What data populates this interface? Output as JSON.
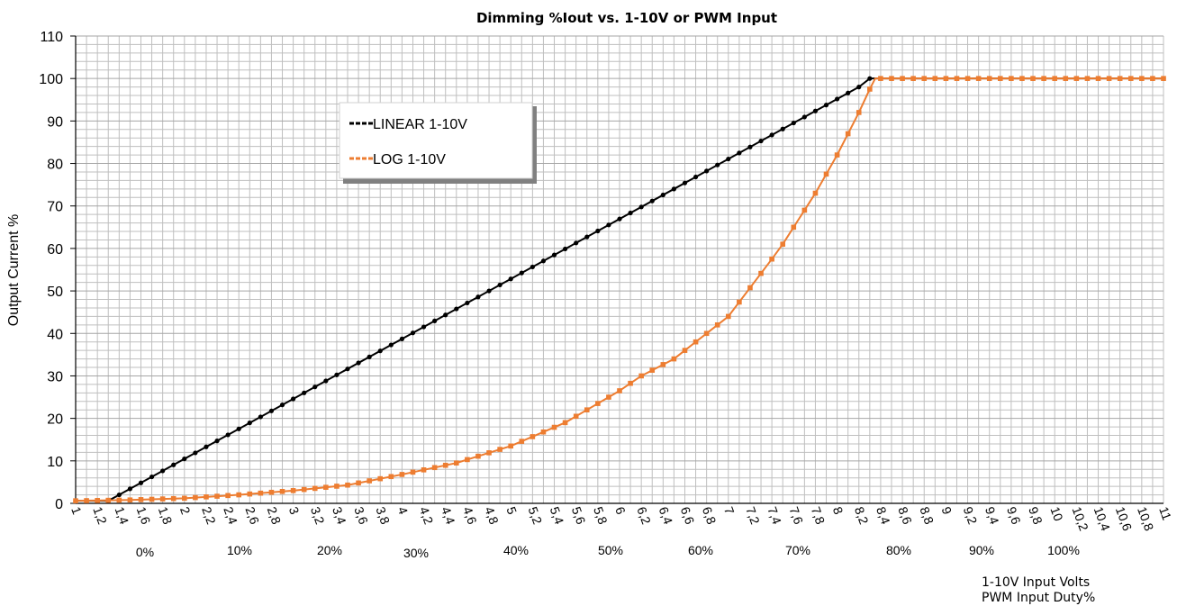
{
  "chart_data": {
    "type": "line",
    "title": "Dimming %Iout vs. 1-10V or PWM Input",
    "ylabel": "Output Current %",
    "xlabel_line1": "1-10V Input Volts",
    "xlabel_line2": "PWM Input Duty%",
    "xlim": [
      1,
      11
    ],
    "ylim": [
      0,
      110
    ],
    "y_ticks": [
      "0",
      "10",
      "20",
      "30",
      "40",
      "50",
      "60",
      "70",
      "80",
      "90",
      "100",
      "110"
    ],
    "x_ticks": [
      "1",
      "1,2",
      "1,4",
      "1,6",
      "1,8",
      "2",
      "2,2",
      "2,4",
      "2,6",
      "2,8",
      "3",
      "3,2",
      "3,4",
      "3,6",
      "3,8",
      "4",
      "4,2",
      "4,4",
      "4,6",
      "4,8",
      "5",
      "5,2",
      "5,4",
      "5,6",
      "5,8",
      "6",
      "6,2",
      "6,4",
      "6,6",
      "6,8",
      "7",
      "7,2",
      "7,4",
      "7,6",
      "7,8",
      "8",
      "8,2",
      "8,4",
      "8,6",
      "8,8",
      "9",
      "9,2",
      "9,4",
      "9,6",
      "9,8",
      "10",
      "10,2",
      "10,4",
      "10,6",
      "10,8",
      "11"
    ],
    "pwm_ticks": [
      "0%",
      "10%",
      "20%",
      "30%",
      "40%",
      "50%",
      "60%",
      "70%",
      "80%",
      "90%",
      "100%"
    ],
    "grid": true,
    "legend_position": "top-left",
    "colors": {
      "linear": "#000000",
      "log": "#ED7D31",
      "grid": "#BFBFBF"
    },
    "series": [
      {
        "name": "LINEAR 1-10V",
        "points": [
          [
            1,
            0.6
          ],
          [
            1.3,
            0.6
          ],
          [
            1.4,
            2.0
          ],
          [
            8.2,
            98.0
          ],
          [
            8.3,
            100
          ],
          [
            11,
            100
          ]
        ]
      },
      {
        "name": "LOG 1-10V",
        "points": [
          [
            1,
            0.6
          ],
          [
            1.5,
            0.8
          ],
          [
            2,
            1.2
          ],
          [
            2.5,
            2.0
          ],
          [
            3,
            3.0
          ],
          [
            3.5,
            4.3
          ],
          [
            4,
            6.8
          ],
          [
            4.5,
            9.5
          ],
          [
            5,
            13.5
          ],
          [
            5.5,
            19
          ],
          [
            6,
            26.5
          ],
          [
            6.2,
            30
          ],
          [
            6.5,
            34
          ],
          [
            7,
            44
          ],
          [
            7.4,
            57.5
          ],
          [
            7.5,
            61
          ],
          [
            7.8,
            73
          ],
          [
            8,
            82
          ],
          [
            8.1,
            87
          ],
          [
            8.2,
            92
          ],
          [
            8.3,
            97.5
          ],
          [
            8.35,
            100
          ],
          [
            11,
            100
          ]
        ]
      }
    ]
  }
}
